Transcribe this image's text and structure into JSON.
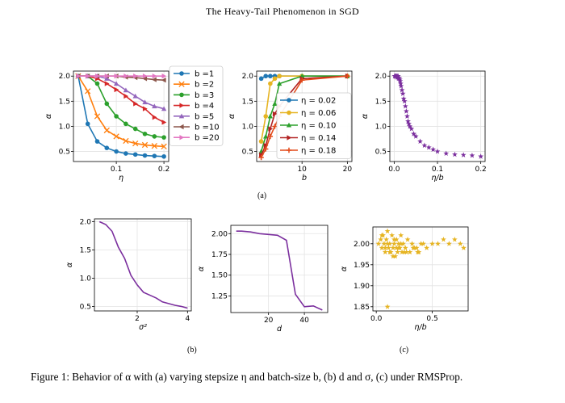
{
  "header": "The Heavy-Tail Phenomenon in SGD",
  "panel_labels": {
    "a": "(a)",
    "b": "(b)",
    "c": "(c)"
  },
  "caption": {
    "prefix": "Figure 1: ",
    "text": "Behavior of α with (a) varying stepsize η and batch-size b, (b) d and σ, (c) under RMSProp."
  },
  "colors": {
    "blue": "#1f77b4",
    "orange": "#ff7f0e",
    "green": "#2ca02c",
    "red": "#d62728",
    "purple": "#9467bd",
    "brown": "#8c564b",
    "pink": "#e377c2",
    "gold": "#e6b422",
    "darkorange": "#ff9f1a",
    "crimson": "#c0392b",
    "violet": "#7b2f9e"
  },
  "chart_data": [
    {
      "id": "a1",
      "type": "line",
      "xlabel": "η",
      "ylabel": "α",
      "xlim": [
        0.01,
        0.21
      ],
      "ylim": [
        0.3,
        2.1
      ],
      "xticks": [
        0.1,
        0.2
      ],
      "xtick_labels": [
        "0.1",
        "0.2"
      ],
      "yticks": [
        0.5,
        1.0,
        1.5,
        2.0
      ],
      "ytick_labels": [
        "0.5",
        "1.0",
        "1.5",
        "2.0"
      ],
      "legend_position": "right",
      "x": [
        0.02,
        0.04,
        0.06,
        0.08,
        0.1,
        0.12,
        0.14,
        0.16,
        0.18,
        0.2
      ],
      "series": [
        {
          "name": "b =1",
          "color": "#1f77b4",
          "marker": "circle",
          "values": [
            2.0,
            1.05,
            0.7,
            0.57,
            0.5,
            0.46,
            0.44,
            0.42,
            0.41,
            0.4
          ]
        },
        {
          "name": "b =2",
          "color": "#ff7f0e",
          "marker": "x",
          "values": [
            2.0,
            1.7,
            1.2,
            0.92,
            0.8,
            0.71,
            0.66,
            0.63,
            0.61,
            0.6
          ]
        },
        {
          "name": "b =3",
          "color": "#2ca02c",
          "marker": "circle",
          "values": [
            2.0,
            2.0,
            1.85,
            1.45,
            1.2,
            1.05,
            0.95,
            0.85,
            0.8,
            0.78
          ]
        },
        {
          "name": "b =4",
          "color": "#d62728",
          "marker": "tri-right",
          "values": [
            2.0,
            2.0,
            1.95,
            1.85,
            1.73,
            1.6,
            1.45,
            1.35,
            1.18,
            1.08
          ]
        },
        {
          "name": "b =5",
          "color": "#9467bd",
          "marker": "tri-up",
          "values": [
            2.0,
            2.0,
            2.0,
            1.95,
            1.85,
            1.72,
            1.6,
            1.48,
            1.4,
            1.35
          ]
        },
        {
          "name": "b =10",
          "color": "#8c564b",
          "marker": "tri-left",
          "values": [
            2.0,
            2.0,
            2.0,
            2.0,
            2.0,
            1.98,
            1.97,
            1.95,
            1.93,
            1.92
          ]
        },
        {
          "name": "b =20",
          "color": "#e377c2",
          "marker": "tri-right",
          "values": [
            2.0,
            2.0,
            2.0,
            2.0,
            2.0,
            2.0,
            2.0,
            2.0,
            2.0,
            2.0
          ]
        }
      ]
    },
    {
      "id": "a2",
      "type": "line",
      "xlabel": "b",
      "ylabel": "α",
      "xlim": [
        0,
        21
      ],
      "ylim": [
        0.3,
        2.1
      ],
      "xticks": [
        10,
        20
      ],
      "xtick_labels": [
        "10",
        "20"
      ],
      "yticks": [
        0.5,
        1.0,
        1.5,
        2.0
      ],
      "ytick_labels": [
        "0.5",
        "1.0",
        "1.5",
        "2.0"
      ],
      "legend_position": "center-right",
      "x": [
        1,
        2,
        3,
        4,
        5,
        10,
        20
      ],
      "series": [
        {
          "name": "η = 0.02",
          "color": "#1f77b4",
          "marker": "circle",
          "values": [
            1.95,
            2.0,
            2.0,
            2.0,
            2.0,
            2.0,
            2.0
          ]
        },
        {
          "name": "η = 0.06",
          "color": "#e6b422",
          "marker": "circle",
          "values": [
            0.7,
            1.2,
            1.85,
            1.95,
            2.0,
            2.0,
            2.0
          ]
        },
        {
          "name": "η = 0.10",
          "color": "#2ca02c",
          "marker": "tri-up",
          "values": [
            0.5,
            0.8,
            1.2,
            1.45,
            1.85,
            2.0,
            2.0
          ]
        },
        {
          "name": "η = 0.14",
          "color": "#b22222",
          "marker": "tri-right",
          "values": [
            0.43,
            0.62,
            0.95,
            1.25,
            1.4,
            1.95,
            2.0
          ]
        },
        {
          "name": "η = 0.18",
          "color": "#e34a1a",
          "marker": "plus",
          "values": [
            0.38,
            0.55,
            0.8,
            1.0,
            1.2,
            1.92,
            2.0
          ]
        }
      ]
    },
    {
      "id": "a3",
      "type": "scatter",
      "xlabel": "η/b",
      "ylabel": "α",
      "xlim": [
        -0.01,
        0.21
      ],
      "ylim": [
        0.3,
        2.1
      ],
      "xticks": [
        0.0,
        0.1,
        0.2
      ],
      "xtick_labels": [
        "0.0",
        "0.1",
        "0.2"
      ],
      "yticks": [
        0.5,
        1.0,
        1.5,
        2.0
      ],
      "ytick_labels": [
        "0.5",
        "1.0",
        "1.5",
        "2.0"
      ],
      "series": [
        {
          "name": "",
          "color": "#7b2f9e",
          "marker": "star",
          "x": [
            0.001,
            0.002,
            0.003,
            0.004,
            0.005,
            0.006,
            0.007,
            0.008,
            0.009,
            0.01,
            0.012,
            0.013,
            0.014,
            0.015,
            0.016,
            0.018,
            0.02,
            0.022,
            0.024,
            0.026,
            0.028,
            0.03,
            0.032,
            0.034,
            0.036,
            0.04,
            0.045,
            0.05,
            0.06,
            0.07,
            0.08,
            0.09,
            0.1,
            0.12,
            0.14,
            0.16,
            0.18,
            0.2
          ],
          "y": [
            2.0,
            2.0,
            1.99,
            2.0,
            2.0,
            1.98,
            2.0,
            1.97,
            2.0,
            1.95,
            1.96,
            1.93,
            1.9,
            1.85,
            1.8,
            1.72,
            1.65,
            1.55,
            1.5,
            1.4,
            1.3,
            1.2,
            1.1,
            1.05,
            1.0,
            0.95,
            0.85,
            0.8,
            0.7,
            0.62,
            0.58,
            0.54,
            0.5,
            0.46,
            0.44,
            0.43,
            0.42,
            0.4
          ]
        }
      ]
    },
    {
      "id": "b1",
      "type": "line",
      "xlabel": "σ²",
      "ylabel": "α",
      "xlim": [
        0.3,
        4.15
      ],
      "ylim": [
        0.42,
        2.05
      ],
      "xticks": [
        2,
        4
      ],
      "xtick_labels": [
        "2",
        "4"
      ],
      "yticks": [
        0.5,
        1.0,
        1.5,
        2.0
      ],
      "ytick_labels": [
        "0.5",
        "1.0",
        "1.5",
        "2.0"
      ],
      "series": [
        {
          "name": "",
          "color": "#7b2f9e",
          "marker": "none",
          "x": [
            0.5,
            0.75,
            1.0,
            1.25,
            1.5,
            1.75,
            2.0,
            2.25,
            2.5,
            2.75,
            3.0,
            3.25,
            3.5,
            3.75,
            4.0
          ],
          "values": [
            2.0,
            1.95,
            1.83,
            1.55,
            1.35,
            1.05,
            0.88,
            0.75,
            0.7,
            0.65,
            0.58,
            0.55,
            0.52,
            0.5,
            0.47
          ]
        }
      ]
    },
    {
      "id": "b2",
      "type": "line",
      "xlabel": "d",
      "ylabel": "α",
      "xlim": [
        -1,
        53
      ],
      "ylim": [
        1.05,
        2.1
      ],
      "xticks": [
        20,
        40
      ],
      "xtick_labels": [
        "20",
        "40"
      ],
      "yticks": [
        1.25,
        1.5,
        1.75,
        2.0
      ],
      "ytick_labels": [
        "1.25",
        "1.50",
        "1.75",
        "2.00"
      ],
      "series": [
        {
          "name": "",
          "color": "#7b2f9e",
          "marker": "none",
          "x": [
            2,
            5,
            10,
            15,
            20,
            25,
            30,
            35,
            40,
            45,
            50
          ],
          "values": [
            2.03,
            2.03,
            2.02,
            2.0,
            1.99,
            1.98,
            1.92,
            1.27,
            1.12,
            1.13,
            1.08
          ]
        }
      ]
    },
    {
      "id": "c",
      "type": "scatter",
      "xlabel": "η/b",
      "ylabel": "α",
      "xlim": [
        -0.03,
        0.82
      ],
      "ylim": [
        1.84,
        2.04
      ],
      "xticks": [
        0.0,
        0.5
      ],
      "xtick_labels": [
        "0.0",
        "0.5"
      ],
      "yticks": [
        1.85,
        1.9,
        1.95,
        2.0
      ],
      "ytick_labels": [
        "1.85",
        "1.90",
        "1.95",
        "2.00"
      ],
      "series": [
        {
          "name": "",
          "color": "#e6b422",
          "marker": "star",
          "x": [
            0.02,
            0.04,
            0.05,
            0.06,
            0.07,
            0.08,
            0.09,
            0.1,
            0.11,
            0.12,
            0.13,
            0.14,
            0.15,
            0.16,
            0.17,
            0.18,
            0.19,
            0.2,
            0.21,
            0.22,
            0.23,
            0.24,
            0.26,
            0.28,
            0.3,
            0.32,
            0.34,
            0.36,
            0.38,
            0.4,
            0.45,
            0.5,
            0.55,
            0.6,
            0.65,
            0.7,
            0.75,
            0.78,
            0.08,
            0.12,
            0.15,
            0.18,
            0.22,
            0.25,
            0.05,
            0.1,
            0.16,
            0.2,
            0.27,
            0.33,
            0.37,
            0.42,
            0.1
          ],
          "y": [
            2.0,
            2.01,
            1.99,
            2.02,
            2.0,
            1.98,
            2.01,
            2.03,
            1.99,
            2.0,
            1.98,
            2.02,
            1.99,
            2.0,
            1.97,
            2.01,
            1.98,
            2.0,
            1.99,
            2.02,
            1.98,
            2.0,
            1.99,
            2.01,
            1.98,
            2.0,
            1.99,
            1.99,
            1.98,
            2.0,
            1.99,
            2.0,
            2.0,
            2.01,
            2.0,
            2.01,
            2.0,
            1.99,
            1.99,
            1.98,
            1.97,
            1.99,
            2.0,
            1.98,
            2.02,
            2.0,
            2.01,
            1.99,
            1.98,
            1.99,
            1.98,
            2.0,
            1.85
          ]
        }
      ]
    }
  ]
}
